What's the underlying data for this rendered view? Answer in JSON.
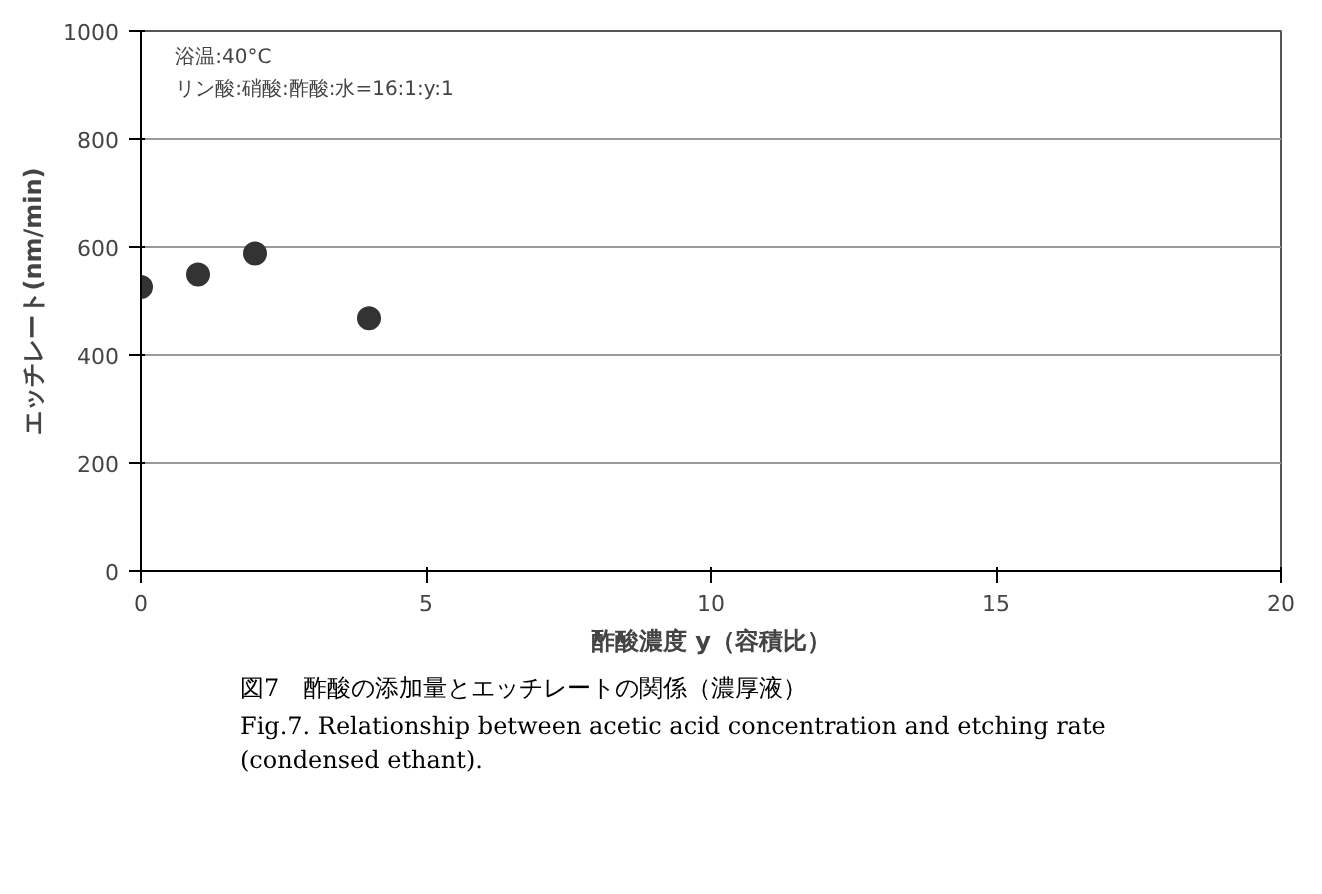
{
  "chart_data": {
    "type": "scatter",
    "xlabel": "酢酸濃度 y（容積比）",
    "ylabel": "エッチレート(nm/min)",
    "x": [
      0,
      1,
      2,
      4
    ],
    "values": [
      526,
      549,
      588,
      468
    ],
    "color": "#333333",
    "marker": "circle",
    "xlim": [
      0,
      20
    ],
    "xticks": [
      0,
      5,
      10,
      15,
      20
    ],
    "ylim": [
      0,
      1000
    ],
    "yticks": [
      0,
      200,
      400,
      600,
      800,
      1000
    ],
    "grid": "y",
    "annotations": [
      "浴温:40°C",
      "リン酸:硝酸:酢酸:水=16:1:y:1",
      "図7　酢酸の添加量とエッチレートの関係（濃厚液）",
      "Fig.7. Relationship between acetic acid concentration and etching rate (condensed ethant)."
    ]
  }
}
